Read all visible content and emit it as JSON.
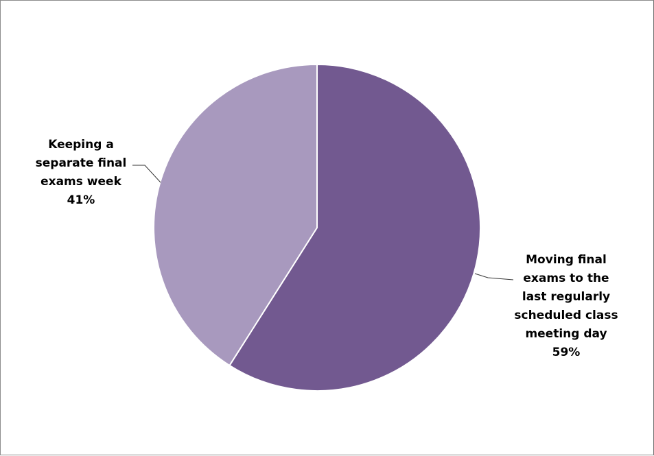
{
  "chart_data": {
    "type": "pie",
    "title": "",
    "legend": "none",
    "slices": [
      {
        "label_lines": [
          "Moving final",
          "exams to the",
          "last regularly",
          "scheduled class",
          "meeting day"
        ],
        "percent_label": "59%",
        "value": 59,
        "color": "#725990"
      },
      {
        "label_lines": [
          "Keeping a",
          "separate final",
          "exams week"
        ],
        "percent_label": "41%",
        "value": 41,
        "color": "#a899be"
      }
    ]
  }
}
